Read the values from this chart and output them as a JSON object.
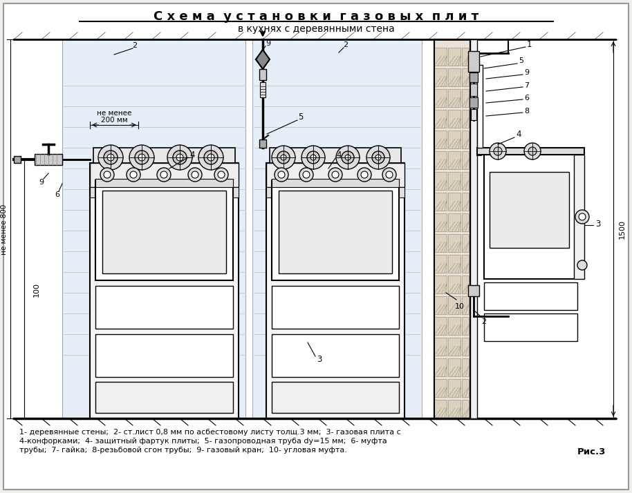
{
  "title_line1": "С х е м а  у с т а н о в к и  г а з о в ы х  п л и т",
  "title_line2": "в кухнях с деревянными стена",
  "bg_color": "#f0f0eb",
  "caption_line1": "1- деревянные стены;  2- ст.лист 0,8 мм по асбестовому листу толщ.3 мм;  3- газовая плита с",
  "caption_line2": "4-конфорками;  4- защитный фартук плиты;  5- газопроводная труба dy=15 мм;  6- муфта",
  "caption_line3": "трубы;  7- гайка;  8-резьбовой сгон трубы;  9- газовый кран;  10- угловая муфта.",
  "fig_label": "Рис.3"
}
